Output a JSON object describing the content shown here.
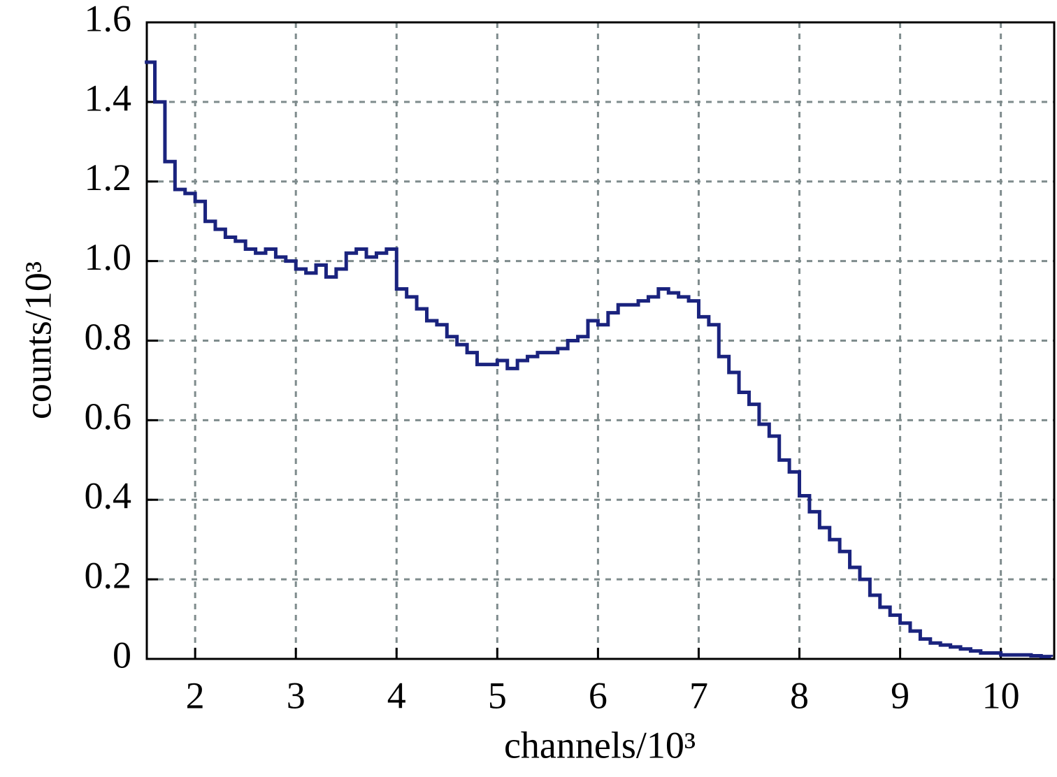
{
  "chart_data": {
    "type": "line",
    "step": true,
    "color": "#1a237e",
    "xlabel": "channels/10³",
    "ylabel": "counts/10³",
    "xlim": [
      1.52,
      10.53
    ],
    "ylim": [
      0,
      1.6
    ],
    "xticks": [
      2,
      3,
      4,
      5,
      6,
      7,
      8,
      9,
      10
    ],
    "yticks": [
      0,
      0.2,
      0.4,
      0.6,
      0.8,
      {
        "value": 1,
        "label": "1.0"
      },
      1.2,
      1.4,
      1.6
    ],
    "grid": true,
    "x": [
      1.5,
      1.6,
      1.7,
      1.8,
      1.9,
      2.0,
      2.1,
      2.2,
      2.3,
      2.4,
      2.5,
      2.6,
      2.7,
      2.8,
      2.9,
      3.0,
      3.1,
      3.2,
      3.3,
      3.4,
      3.5,
      3.6,
      3.7,
      3.8,
      3.9,
      4.0,
      4.1,
      4.2,
      4.3,
      4.4,
      4.5,
      4.6,
      4.7,
      4.8,
      4.9,
      5.0,
      5.1,
      5.2,
      5.3,
      5.4,
      5.5,
      5.6,
      5.7,
      5.8,
      5.9,
      6.0,
      6.1,
      6.2,
      6.3,
      6.4,
      6.5,
      6.6,
      6.7,
      6.8,
      6.9,
      7.0,
      7.1,
      7.2,
      7.3,
      7.4,
      7.5,
      7.6,
      7.7,
      7.8,
      7.9,
      8.0,
      8.1,
      8.2,
      8.3,
      8.4,
      8.5,
      8.6,
      8.7,
      8.8,
      8.9,
      9.0,
      9.1,
      9.2,
      9.3,
      9.4,
      9.5,
      9.6,
      9.7,
      9.8,
      9.9,
      10.0,
      10.1,
      10.2,
      10.3,
      10.4,
      10.5
    ],
    "values": [
      1.5,
      1.4,
      1.25,
      1.18,
      1.17,
      1.15,
      1.1,
      1.08,
      1.06,
      1.05,
      1.03,
      1.02,
      1.03,
      1.01,
      1.0,
      0.98,
      0.97,
      0.99,
      0.96,
      0.98,
      1.02,
      1.03,
      1.01,
      1.02,
      1.03,
      0.93,
      0.91,
      0.88,
      0.85,
      0.84,
      0.81,
      0.79,
      0.77,
      0.74,
      0.74,
      0.75,
      0.73,
      0.75,
      0.76,
      0.77,
      0.77,
      0.78,
      0.8,
      0.81,
      0.85,
      0.84,
      0.87,
      0.89,
      0.89,
      0.9,
      0.91,
      0.93,
      0.92,
      0.91,
      0.9,
      0.86,
      0.84,
      0.76,
      0.72,
      0.67,
      0.64,
      0.59,
      0.56,
      0.5,
      0.47,
      0.41,
      0.37,
      0.33,
      0.3,
      0.27,
      0.23,
      0.2,
      0.16,
      0.13,
      0.11,
      0.09,
      0.07,
      0.05,
      0.04,
      0.035,
      0.03,
      0.025,
      0.02,
      0.015,
      0.015,
      0.01,
      0.01,
      0.01,
      0.008,
      0.006,
      0.005
    ]
  }
}
